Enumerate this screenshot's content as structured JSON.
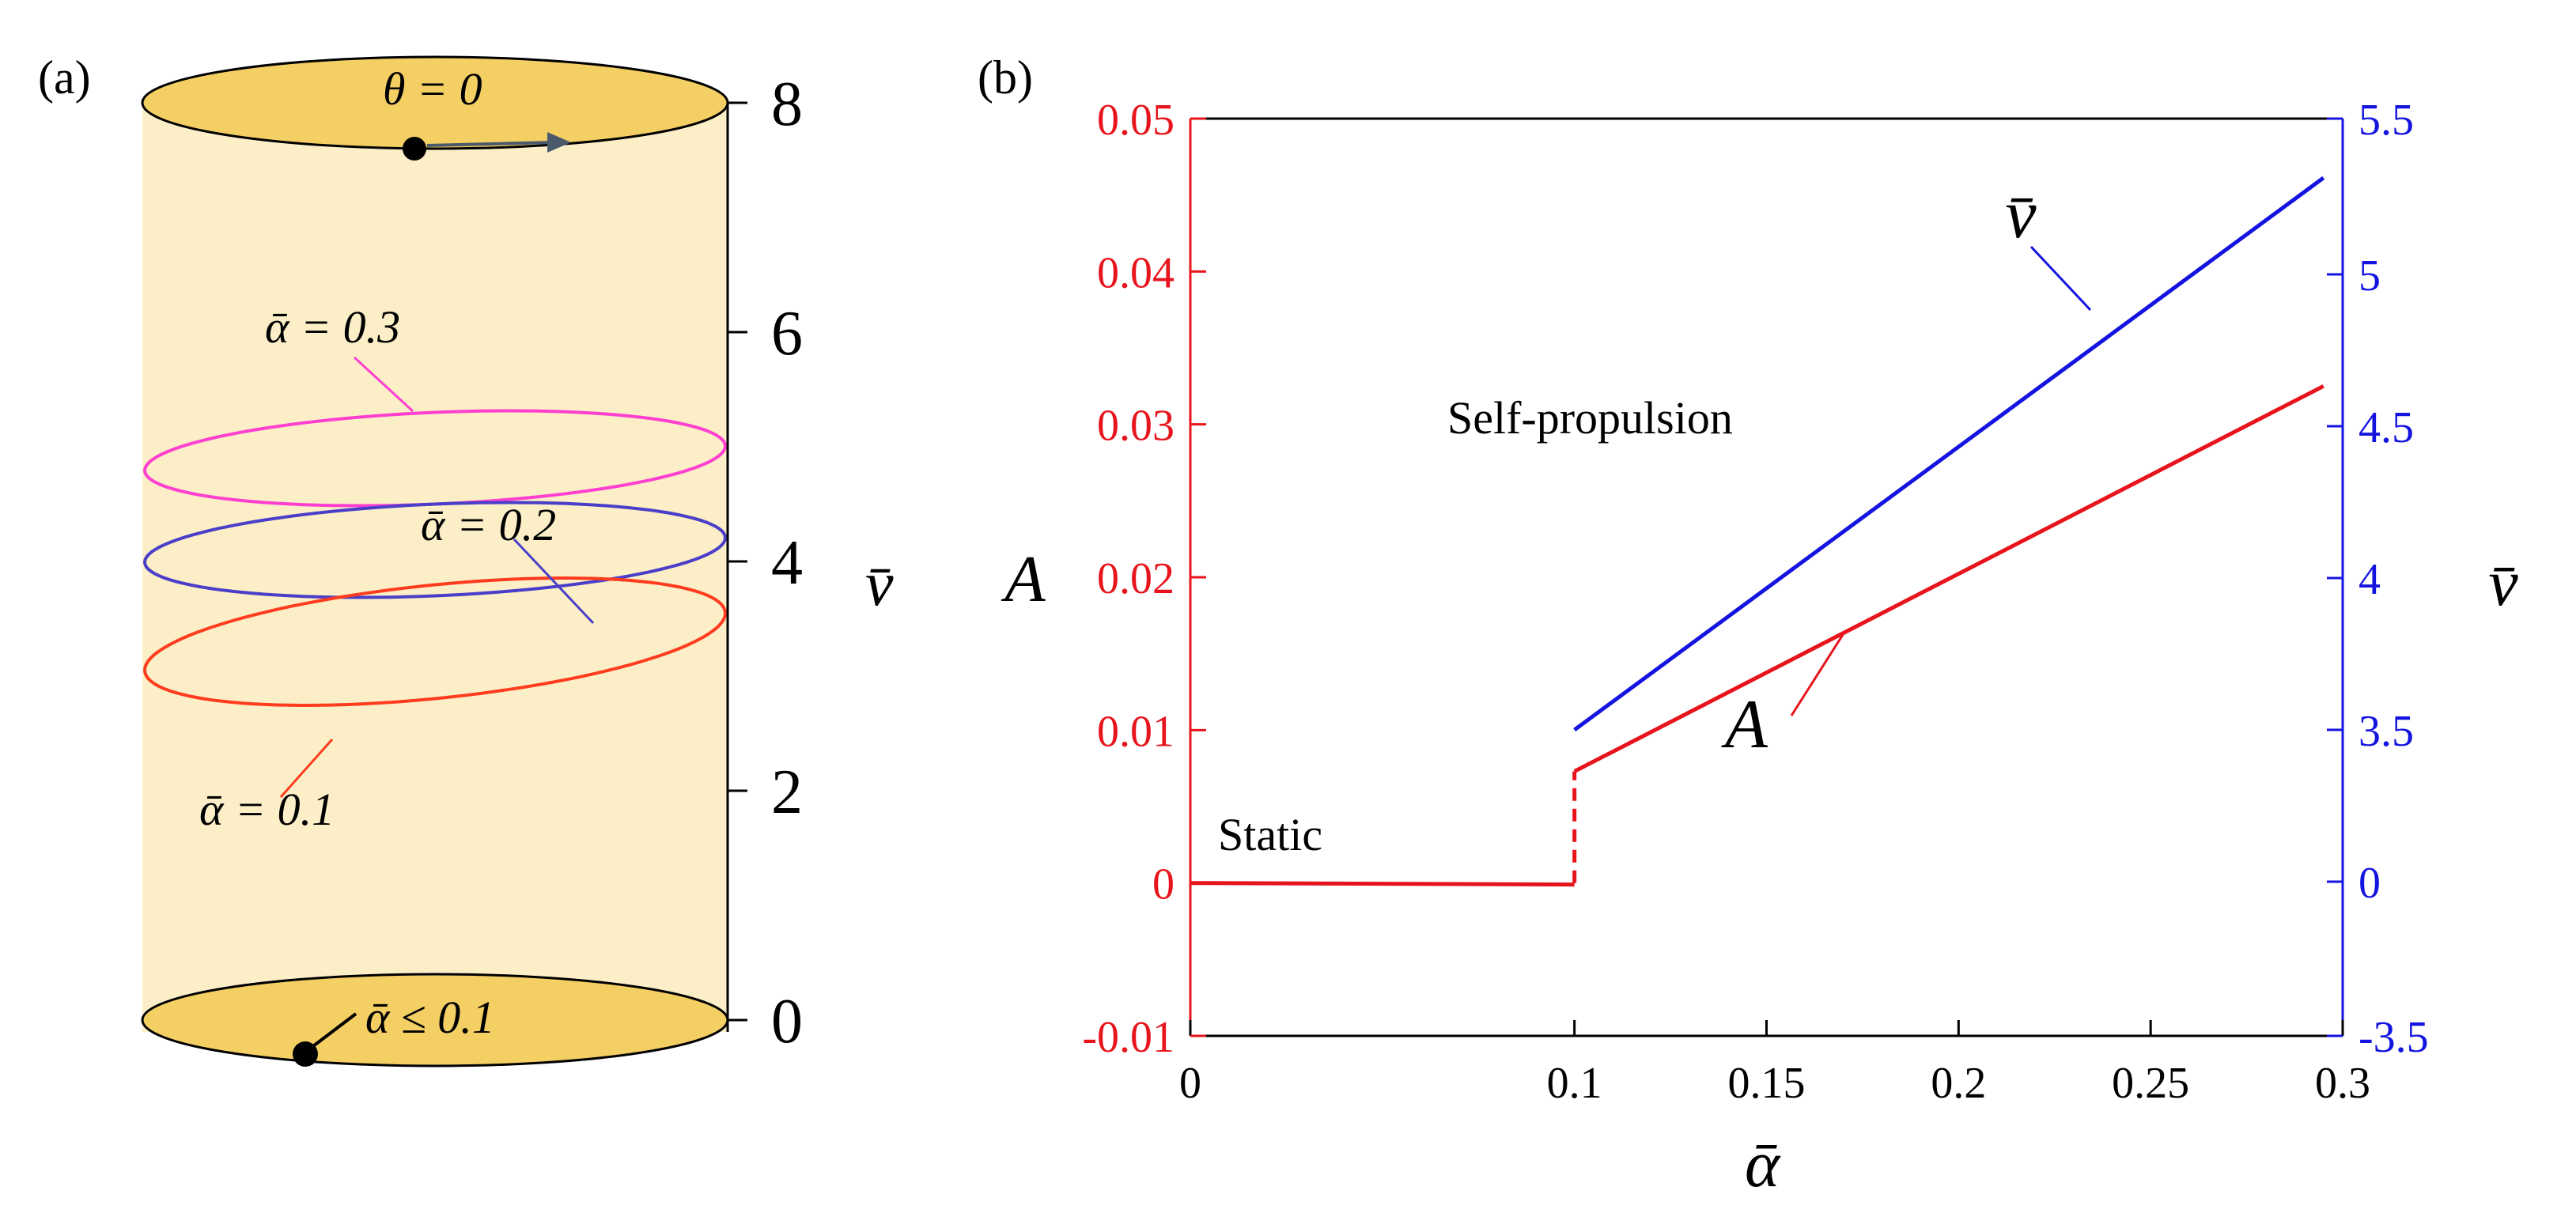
{
  "colors": {
    "red": "#e8141c",
    "blue": "#1414e0",
    "magenta": "#ff3fd0",
    "indigo": "#4a3fc8",
    "orange_red": "#ff3c1e",
    "cylinder_body": "#fcefc8",
    "cylinder_cap": "#f4cf64",
    "axis_black": "#000000",
    "arrow_gray": "#4a5a6a"
  },
  "panel_a": {
    "label": "(a)",
    "top_annotation": "θ = 0",
    "bottom_annotation": "ᾱ ≤ 0.1",
    "axis_label": "v̄",
    "axis_ticks": [
      "0",
      "2",
      "4",
      "6",
      "8"
    ],
    "axis_tick_values": [
      0,
      2,
      4,
      6,
      8
    ],
    "orbits": [
      {
        "label": "ᾱ = 0.3",
        "alpha": 0.3,
        "mean_v": 4.9,
        "color_key": "magenta"
      },
      {
        "label": "ᾱ = 0.2",
        "alpha": 0.2,
        "mean_v": 4.1,
        "color_key": "indigo"
      },
      {
        "label": "ᾱ = 0.1",
        "alpha": 0.1,
        "mean_v": 3.3,
        "color_key": "orange_red"
      }
    ]
  },
  "panel_b": {
    "label": "(b)",
    "regions": {
      "static": "Static",
      "self_propulsion": "Self-propulsion"
    },
    "curve_labels": {
      "A": "A",
      "v": "v̄"
    }
  },
  "chart_data": {
    "type": "line",
    "title": "",
    "xlabel": "ᾱ",
    "ylabel_left": "A",
    "ylabel_right": "v̄",
    "xlim": [
      0,
      0.3
    ],
    "ylim_left": [
      -0.01,
      0.05
    ],
    "ylim_right_ticks": [
      "-3.5",
      "0",
      "3.5",
      "4",
      "4.5",
      "5",
      "5.5"
    ],
    "x_ticks": [
      "0",
      "0.1",
      "0.15",
      "0.2",
      "0.25",
      "0.3"
    ],
    "y_left_ticks": [
      "-0.01",
      "0",
      "0.01",
      "0.02",
      "0.03",
      "0.04",
      "0.05"
    ],
    "series": [
      {
        "name": "A (static)",
        "axis": "left",
        "color": "#e8141c",
        "style": "solid",
        "x": [
          0,
          0.1
        ],
        "y": [
          0,
          -0.0001
        ]
      },
      {
        "name": "A (jump)",
        "axis": "left",
        "color": "#e8141c",
        "style": "dashed",
        "x": [
          0.1,
          0.1
        ],
        "y": [
          0,
          0.0073
        ]
      },
      {
        "name": "A (self-propulsion)",
        "axis": "left",
        "color": "#e8141c",
        "style": "solid",
        "x": [
          0.1,
          0.295
        ],
        "y": [
          0.0073,
          0.0325
        ]
      },
      {
        "name": "v̄ (self-propulsion)",
        "axis": "right",
        "color": "#1414e0",
        "style": "solid",
        "x": [
          0.1,
          0.295
        ],
        "y": [
          3.5,
          5.31
        ]
      }
    ]
  }
}
